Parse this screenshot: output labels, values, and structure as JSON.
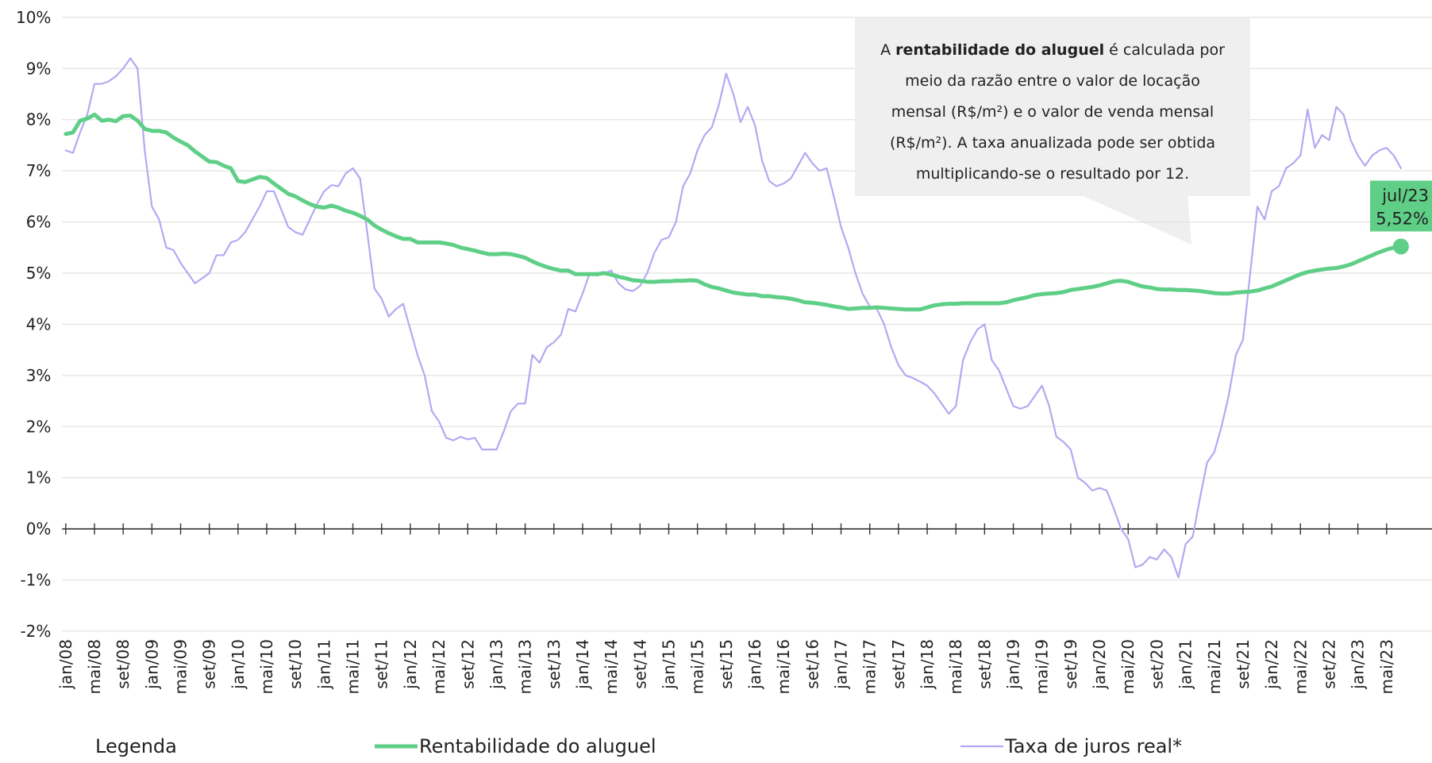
{
  "chart_data": {
    "type": "line",
    "categories": [
      "jan/08",
      null,
      null,
      null,
      "mai/08",
      null,
      null,
      null,
      "set/08",
      null,
      null,
      null,
      "jan/09",
      null,
      null,
      null,
      "mai/09",
      null,
      null,
      null,
      "set/09",
      null,
      null,
      null,
      "jan/10",
      null,
      null,
      null,
      "mai/10",
      null,
      null,
      null,
      "set/10",
      null,
      null,
      null,
      "jan/11",
      null,
      null,
      null,
      "mai/11",
      null,
      null,
      null,
      "set/11",
      null,
      null,
      null,
      "jan/12",
      null,
      null,
      null,
      "mai/12",
      null,
      null,
      null,
      "set/12",
      null,
      null,
      null,
      "jan/13",
      null,
      null,
      null,
      "mai/13",
      null,
      null,
      null,
      "set/13",
      null,
      null,
      null,
      "jan/14",
      null,
      null,
      null,
      "mai/14",
      null,
      null,
      null,
      "set/14",
      null,
      null,
      null,
      "jan/15",
      null,
      null,
      null,
      "mai/15",
      null,
      null,
      null,
      "set/15",
      null,
      null,
      null,
      "jan/16",
      null,
      null,
      null,
      "mai/16",
      null,
      null,
      null,
      "set/16",
      null,
      null,
      null,
      "jan/17",
      null,
      null,
      null,
      "mai/17",
      null,
      null,
      null,
      "set/17",
      null,
      null,
      null,
      "jan/18",
      null,
      null,
      null,
      "mai/18",
      null,
      null,
      null,
      "set/18",
      null,
      null,
      null,
      "jan/19",
      null,
      null,
      null,
      "mai/19",
      null,
      null,
      null,
      "set/19",
      null,
      null,
      null,
      "jan/20",
      null,
      null,
      null,
      "mai/20",
      null,
      null,
      null,
      "set/20",
      null,
      null,
      null,
      "jan/21",
      null,
      null,
      null,
      "mai/21",
      null,
      null,
      null,
      "set/21",
      null,
      null,
      null,
      "jan/22",
      null,
      null,
      null,
      "mai/22",
      null,
      null,
      null,
      "set/22",
      null,
      null,
      null,
      "jan/23",
      null,
      null,
      null,
      "mai/23",
      null,
      null
    ],
    "series": [
      {
        "name": "Rentabilidade do aluguel",
        "color": "#5fcf87",
        "values": [
          7.72,
          7.75,
          7.98,
          8.02,
          8.1,
          7.98,
          8.0,
          7.97,
          8.07,
          8.08,
          7.98,
          7.82,
          7.78,
          7.78,
          7.75,
          7.65,
          7.57,
          7.5,
          7.38,
          7.28,
          7.18,
          7.17,
          7.1,
          7.05,
          6.8,
          6.78,
          6.83,
          6.88,
          6.86,
          6.75,
          6.65,
          6.55,
          6.5,
          6.42,
          6.35,
          6.3,
          6.28,
          6.32,
          6.28,
          6.22,
          6.18,
          6.12,
          6.05,
          5.93,
          5.85,
          5.78,
          5.72,
          5.67,
          5.67,
          5.6,
          5.6,
          5.6,
          5.6,
          5.58,
          5.55,
          5.5,
          5.47,
          5.44,
          5.4,
          5.37,
          5.37,
          5.38,
          5.37,
          5.34,
          5.3,
          5.23,
          5.17,
          5.12,
          5.08,
          5.05,
          5.05,
          4.98,
          4.98,
          4.98,
          4.98,
          5.0,
          4.97,
          4.93,
          4.9,
          4.86,
          4.85,
          4.83,
          4.83,
          4.84,
          4.84,
          4.85,
          4.85,
          4.86,
          4.85,
          4.78,
          4.73,
          4.7,
          4.66,
          4.62,
          4.6,
          4.58,
          4.58,
          4.55,
          4.55,
          4.53,
          4.52,
          4.5,
          4.47,
          4.43,
          4.42,
          4.4,
          4.38,
          4.35,
          4.33,
          4.3,
          4.31,
          4.32,
          4.32,
          4.33,
          4.32,
          4.31,
          4.3,
          4.29,
          4.29,
          4.29,
          4.33,
          4.37,
          4.39,
          4.4,
          4.4,
          4.41,
          4.41,
          4.41,
          4.41,
          4.41,
          4.41,
          4.43,
          4.47,
          4.5,
          4.53,
          4.57,
          4.59,
          4.6,
          4.61,
          4.63,
          4.67,
          4.69,
          4.71,
          4.73,
          4.76,
          4.8,
          4.84,
          4.85,
          4.83,
          4.78,
          4.74,
          4.72,
          4.69,
          4.68,
          4.68,
          4.67,
          4.67,
          4.66,
          4.65,
          4.63,
          4.61,
          4.6,
          4.6,
          4.62,
          4.63,
          4.64,
          4.66,
          4.7,
          4.74,
          4.8,
          4.86,
          4.92,
          4.98,
          5.02,
          5.05,
          5.07,
          5.09,
          5.1,
          5.13,
          5.17,
          5.23,
          5.29,
          5.35,
          5.41,
          5.46,
          5.5,
          5.52
        ],
        "value_labels": [
          null,
          null,
          null,
          null,
          null,
          null,
          null,
          null,
          null,
          null,
          null,
          null,
          null,
          null,
          null,
          null,
          null,
          null,
          null,
          null,
          null,
          null,
          null,
          null,
          null,
          null,
          null,
          null,
          null,
          null,
          null,
          null,
          null,
          null,
          null,
          null,
          null,
          null,
          null,
          null,
          null,
          null,
          null,
          null,
          null,
          null,
          null,
          null,
          null,
          null,
          null,
          null,
          null,
          null,
          null,
          null,
          null,
          null,
          null,
          null,
          null,
          null,
          null,
          null,
          null,
          null,
          null,
          null,
          null,
          null,
          null,
          null,
          null,
          null,
          null,
          null,
          null,
          null,
          null,
          null,
          null,
          null,
          null,
          null,
          null,
          null,
          null,
          null,
          null,
          null,
          null,
          null,
          null,
          null,
          null,
          null,
          null,
          null,
          null,
          null,
          null,
          null,
          null,
          null,
          null,
          null,
          null,
          null,
          null,
          null,
          null,
          null,
          null,
          null,
          null,
          null,
          null,
          null,
          null,
          null,
          null,
          null,
          null,
          null,
          null,
          null,
          null,
          null,
          null,
          null,
          null,
          null,
          null,
          null,
          null,
          null,
          null,
          null,
          null,
          null,
          null,
          null,
          null,
          null,
          null,
          null,
          null,
          null,
          null,
          null,
          null,
          null,
          null,
          null,
          null,
          null,
          null,
          null,
          null,
          null,
          null,
          null,
          null,
          null,
          null,
          null,
          null,
          null,
          null,
          null,
          null,
          null,
          null,
          null,
          null,
          null,
          null,
          null,
          null,
          null,
          null,
          null,
          null,
          null,
          null,
          null,
          "5,52%"
        ]
      },
      {
        "name": "Taxa de juros real*",
        "color": "#b5a8f2",
        "values": [
          7.4,
          7.35,
          7.75,
          8.1,
          8.7,
          8.7,
          8.75,
          8.85,
          9.0,
          9.2,
          9.0,
          7.4,
          6.3,
          6.05,
          5.5,
          5.45,
          5.2,
          5.0,
          4.8,
          4.9,
          5.0,
          5.35,
          5.35,
          5.6,
          5.65,
          5.8,
          6.05,
          6.3,
          6.6,
          6.6,
          6.25,
          5.9,
          5.8,
          5.75,
          6.05,
          6.35,
          6.6,
          6.72,
          6.7,
          6.95,
          7.05,
          6.85,
          5.8,
          4.7,
          4.5,
          4.15,
          4.3,
          4.4,
          3.9,
          3.4,
          3.0,
          2.3,
          2.1,
          1.78,
          1.73,
          1.8,
          1.75,
          1.78,
          1.55,
          1.55,
          1.55,
          1.9,
          2.3,
          2.45,
          2.45,
          3.4,
          3.25,
          3.55,
          3.65,
          3.8,
          4.3,
          4.25,
          4.6,
          5.0,
          4.95,
          5.0,
          5.05,
          4.8,
          4.68,
          4.65,
          4.75,
          5.0,
          5.4,
          5.65,
          5.7,
          6.0,
          6.7,
          6.95,
          7.4,
          7.7,
          7.85,
          8.3,
          8.9,
          8.5,
          7.95,
          8.25,
          7.9,
          7.2,
          6.8,
          6.7,
          6.75,
          6.85,
          7.1,
          7.35,
          7.15,
          7.0,
          7.05,
          6.5,
          5.9,
          5.5,
          5.0,
          4.6,
          4.35,
          4.3,
          4.0,
          3.55,
          3.2,
          3.0,
          2.95,
          2.88,
          2.8,
          2.65,
          2.45,
          2.25,
          2.4,
          3.3,
          3.65,
          3.9,
          4.0,
          3.3,
          3.1,
          2.75,
          2.4,
          2.35,
          2.4,
          2.6,
          2.8,
          2.4,
          1.8,
          1.7,
          1.55,
          1.0,
          0.9,
          0.75,
          0.8,
          0.75,
          0.4,
          0.0,
          -0.2,
          -0.75,
          -0.7,
          -0.55,
          -0.6,
          -0.4,
          -0.55,
          -0.95,
          -0.3,
          -0.15,
          0.6,
          1.3,
          1.5,
          2.0,
          2.6,
          3.4,
          3.7,
          5.0,
          6.3,
          6.05,
          6.6,
          6.7,
          7.05,
          7.15,
          7.3,
          8.2,
          7.45,
          7.7,
          7.6,
          8.25,
          8.1,
          7.6,
          7.3,
          7.1,
          7.3,
          7.4,
          7.45,
          7.3,
          7.05
        ]
      }
    ],
    "ylim": [
      -2,
      10
    ],
    "yticks": [
      {
        "value": -2,
        "label": "-2%"
      },
      {
        "value": -1,
        "label": "-1%"
      },
      {
        "value": 0,
        "label": "0%"
      },
      {
        "value": 1,
        "label": "1%"
      },
      {
        "value": 2,
        "label": "2%"
      },
      {
        "value": 3,
        "label": "3%"
      },
      {
        "value": 4,
        "label": "4%"
      },
      {
        "value": 5,
        "label": "5%"
      },
      {
        "value": 6,
        "label": "6%"
      },
      {
        "value": 7,
        "label": "7%"
      },
      {
        "value": 8,
        "label": "8%"
      },
      {
        "value": 9,
        "label": "9%"
      },
      {
        "value": 10,
        "label": "10%"
      }
    ],
    "grid": true,
    "legend_title": "Legenda",
    "legend_position": "bottom",
    "highlight_label": "jul/23",
    "annotation": {
      "before": "A ",
      "bold": "rentabilidade do aluguel",
      "after": " é calculada por meio da razão entre o valor de locação mensal (R$/m²) e o valor de venda mensal (R$/m²).  A taxa anualizada pode ser obtida multiplicando-se  o resultado por 12."
    }
  }
}
